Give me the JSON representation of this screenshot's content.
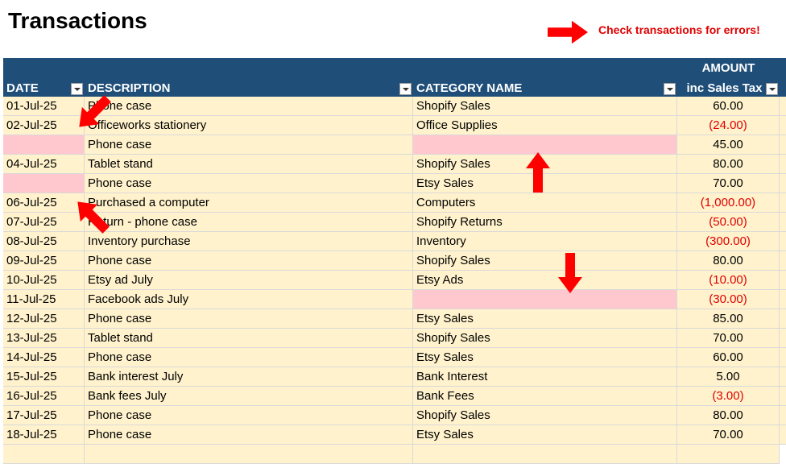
{
  "title": "Transactions",
  "note": "Check transactions for errors!",
  "table": {
    "columns": [
      "DATE",
      "DESCRIPTION",
      "CATEGORY NAME",
      "AMOUNT"
    ],
    "amount_subheader": "inc Sales Tax",
    "rows": [
      [
        "01-Jul-25",
        "Phone case",
        "Shopify Sales",
        "60.00"
      ],
      [
        "02-Jul-25",
        "Officeworks stationery",
        "Office Supplies",
        "(24.00)"
      ],
      [
        null,
        "Phone case",
        null,
        "45.00"
      ],
      [
        "04-Jul-25",
        "Tablet stand",
        "Shopify Sales",
        "80.00"
      ],
      [
        null,
        "Phone case",
        "Etsy Sales",
        "70.00"
      ],
      [
        "06-Jul-25",
        "Purchased a computer",
        "Computers",
        "(1,000.00)"
      ],
      [
        "07-Jul-25",
        "Return - phone case",
        "Shopify Returns",
        "(50.00)"
      ],
      [
        "08-Jul-25",
        "Inventory purchase",
        "Inventory",
        "(300.00)"
      ],
      [
        "09-Jul-25",
        "Phone case",
        "Shopify Sales",
        "80.00"
      ],
      [
        "10-Jul-25",
        "Etsy ad July",
        "Etsy Ads",
        "(10.00)"
      ],
      [
        "11-Jul-25",
        "Facebook ads July",
        null,
        "(30.00)"
      ],
      [
        "12-Jul-25",
        "Phone case",
        "Etsy Sales",
        "85.00"
      ],
      [
        "13-Jul-25",
        "Tablet stand",
        "Shopify Sales",
        "70.00"
      ],
      [
        "14-Jul-25",
        "Phone case",
        "Etsy Sales",
        "60.00"
      ],
      [
        "15-Jul-25",
        "Bank interest July",
        "Bank Interest",
        "5.00"
      ],
      [
        "16-Jul-25",
        "Bank fees July",
        "Bank Fees",
        "(3.00)"
      ],
      [
        "17-Jul-25",
        "Phone case",
        "Shopify Sales",
        "80.00"
      ],
      [
        "18-Jul-25",
        "Phone case",
        "Etsy Sales",
        "70.00"
      ]
    ]
  }
}
